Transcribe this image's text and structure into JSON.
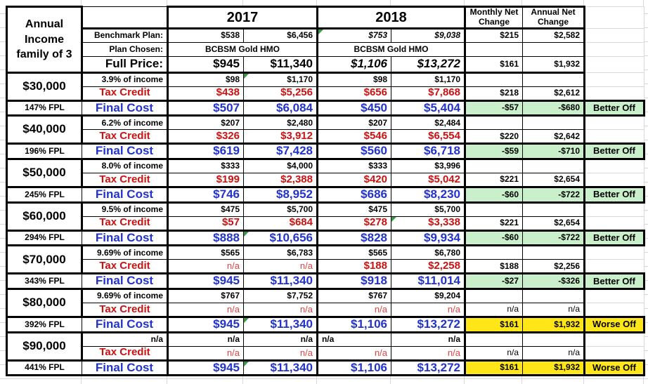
{
  "colors": {
    "red_text": "#cc1111",
    "red_na_text": "#dd4444",
    "blue_text": "#2233cc",
    "better_bg": "#c9f0ca",
    "worse_bg": "#ffe619",
    "gridline": "#d9d9d9",
    "flag_green": "#2f9e44"
  },
  "header": {
    "income_title": "Annual Income family of 3",
    "year_2017": "2017",
    "year_2018": "2018",
    "monthly_net": "Monthly Net Change",
    "annual_net": "Annual Net Change"
  },
  "plan": {
    "benchmark": {
      "label": "Benchmark Plan:",
      "m17": "$538",
      "a17": "$6,456",
      "m18": "$753",
      "a18": "$9,038",
      "mnet": "$215",
      "anet": "$2,582"
    },
    "chosen": {
      "label": "Plan Chosen:",
      "plan17": "BCBSM Gold HMO",
      "plan18": "BCBSM Gold HMO",
      "mnet": "",
      "anet": ""
    },
    "full_price": {
      "label": "Full Price:",
      "m17": "$945",
      "a17": "$11,340",
      "m18": "$1,106",
      "a18": "$13,272",
      "mnet": "$161",
      "anet": "$1,932"
    }
  },
  "groups": [
    {
      "income": "$30,000",
      "fpl": "147% FPL",
      "pct": {
        "label": "3.9% of income",
        "m17": "$98",
        "a17": "$1,170",
        "m18": "$98",
        "a18": "$1,170",
        "mnet": "",
        "anet": ""
      },
      "tax": {
        "label": "Tax Credit",
        "m17": "$438",
        "a17": "$5,256",
        "m18": "$656",
        "a18": "$7,868",
        "mnet": "$218",
        "anet": "$2,612"
      },
      "final": {
        "label": "Final Cost",
        "m17": "$507",
        "a17": "$6,084",
        "m18": "$450",
        "a18": "$5,404",
        "mnet": "-$57",
        "anet": "-$680",
        "verdict": "Better Off",
        "verdict_type": "better"
      }
    },
    {
      "income": "$40,000",
      "fpl": "196% FPL",
      "pct": {
        "label": "6.2% of income",
        "m17": "$207",
        "a17": "$2,480",
        "m18": "$207",
        "a18": "$2,484",
        "mnet": "",
        "anet": ""
      },
      "tax": {
        "label": "Tax Credit",
        "m17": "$326",
        "a17": "$3,912",
        "m18": "$546",
        "a18": "$6,554",
        "mnet": "$220",
        "anet": "$2,642"
      },
      "final": {
        "label": "Final Cost",
        "m17": "$619",
        "a17": "$7,428",
        "m18": "$560",
        "a18": "$6,718",
        "mnet": "-$59",
        "anet": "-$710",
        "verdict": "Better Off",
        "verdict_type": "better"
      }
    },
    {
      "income": "$50,000",
      "fpl": "245% FPL",
      "pct": {
        "label": "8.0% of income",
        "m17": "$333",
        "a17": "$4,000",
        "m18": "$333",
        "a18": "$3,996",
        "mnet": "",
        "anet": ""
      },
      "tax": {
        "label": "Tax Credit",
        "m17": "$199",
        "a17": "$2,388",
        "m18": "$420",
        "a18": "$5,042",
        "mnet": "$221",
        "anet": "$2,654"
      },
      "final": {
        "label": "Final Cost",
        "m17": "$746",
        "a17": "$8,952",
        "m18": "$686",
        "a18": "$8,230",
        "mnet": "-$60",
        "anet": "-$722",
        "verdict": "Better Off",
        "verdict_type": "better"
      }
    },
    {
      "income": "$60,000",
      "fpl": "294% FPL",
      "pct": {
        "label": "9.5% of income",
        "m17": "$475",
        "a17": "$5,700",
        "m18": "$475",
        "a18": "$5,700",
        "mnet": "",
        "anet": ""
      },
      "tax": {
        "label": "Tax Credit",
        "m17": "$57",
        "a17": "$684",
        "m18": "$278",
        "a18": "$3,338",
        "mnet": "$221",
        "anet": "$2,654"
      },
      "final": {
        "label": "Final Cost",
        "m17": "$888",
        "a17": "$10,656",
        "m18": "$828",
        "a18": "$9,934",
        "mnet": "-$60",
        "anet": "-$722",
        "verdict": "Better Off",
        "verdict_type": "better"
      }
    },
    {
      "income": "$70,000",
      "fpl": "343% FPL",
      "pct": {
        "label": "9.69% of income",
        "m17": "$565",
        "a17": "$6,783",
        "m18": "$565",
        "a18": "$6,780",
        "mnet": "",
        "anet": ""
      },
      "tax": {
        "label": "Tax Credit",
        "m17": "n/a",
        "a17": "n/a",
        "m18": "$188",
        "a18": "$2,258",
        "mnet": "$188",
        "anet": "$2,256"
      },
      "final": {
        "label": "Final Cost",
        "m17": "$945",
        "a17": "$11,340",
        "m18": "$918",
        "a18": "$11,014",
        "mnet": "-$27",
        "anet": "-$326",
        "verdict": "Better Off",
        "verdict_type": "better"
      }
    },
    {
      "income": "$80,000",
      "fpl": "392% FPL",
      "pct": {
        "label": "9.69% of income",
        "m17": "$767",
        "a17": "$7,752",
        "m18": "$767",
        "a18": "$9,204",
        "mnet": "",
        "anet": ""
      },
      "tax": {
        "label": "Tax Credit",
        "m17": "n/a",
        "a17": "n/a",
        "m18": "n/a",
        "a18": "n/a",
        "mnet": "n/a",
        "anet": "n/a"
      },
      "final": {
        "label": "Final Cost",
        "m17": "$945",
        "a17": "$11,340",
        "m18": "$1,106",
        "a18": "$13,272",
        "mnet": "$161",
        "anet": "$1,932",
        "verdict": "Worse Off",
        "verdict_type": "worse"
      }
    },
    {
      "income": "$90,000",
      "fpl": "441% FPL",
      "pct": {
        "label": "n/a",
        "m17": "n/a",
        "a17": "n/a",
        "m18": "n/a",
        "a18": "n/a",
        "mnet": "",
        "anet": ""
      },
      "tax": {
        "label": "Tax Credit",
        "m17": "n/a",
        "a17": "n/a",
        "m18": "n/a",
        "a18": "n/a",
        "mnet": "n/a",
        "anet": "n/a"
      },
      "final": {
        "label": "Final Cost",
        "m17": "$945",
        "a17": "$11,340",
        "m18": "$1,106",
        "a18": "$13,272",
        "mnet": "$161",
        "anet": "$1,932",
        "verdict": "Worse Off",
        "verdict_type": "worse"
      }
    }
  ],
  "flagged_cells": [
    "plan.benchmark.m18",
    "groups.0.pct.a17",
    "groups.3.tax.a18",
    "groups.3.final.a17",
    "groups.5.final.a17",
    "groups.6.final.a17"
  ]
}
